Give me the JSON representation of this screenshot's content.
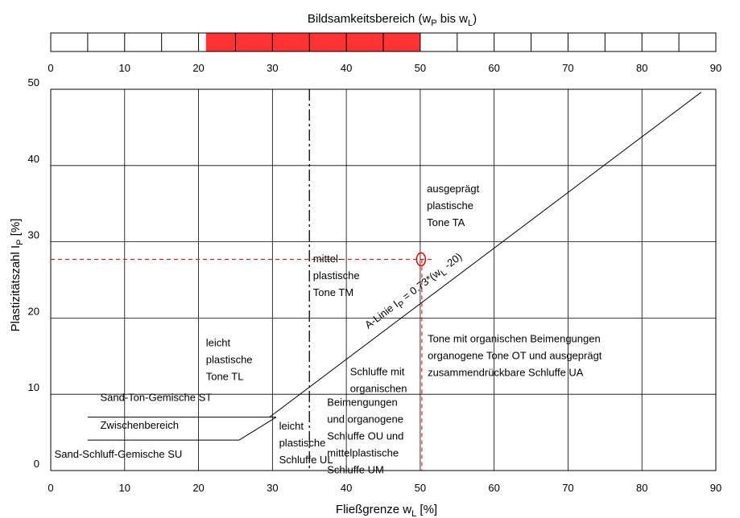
{
  "chart_data": {
    "type": "line",
    "title": "",
    "top_bar": {
      "title_parts": [
        "Bildsamkeitsbereich (w",
        "P",
        " bis w",
        "L",
        ")"
      ],
      "x_range": [
        0,
        90
      ],
      "highlight": [
        21,
        50
      ],
      "highlight_color": "#ff3333",
      "divisions": [
        5,
        10,
        15,
        20,
        25,
        30,
        35,
        40,
        45,
        50,
        55,
        60,
        65,
        70,
        75,
        80,
        85
      ],
      "ticks": [
        "0",
        "10",
        "20",
        "30",
        "40",
        "50",
        "60",
        "70",
        "80",
        "90"
      ]
    },
    "xlabel_parts": [
      "Fließgrenze w",
      "L",
      "  [%]"
    ],
    "ylabel_parts": [
      "Plastizitätszahl I",
      "P",
      " [%]"
    ],
    "xlim": [
      0,
      90
    ],
    "ylim": [
      0,
      50
    ],
    "x_ticks": [
      "0",
      "10",
      "20",
      "30",
      "40",
      "50",
      "60",
      "70",
      "80",
      "90"
    ],
    "y_ticks": [
      "0",
      "10",
      "20",
      "30",
      "40",
      "50"
    ],
    "grid": true,
    "a_line": {
      "label_parts": [
        "A-Linie I",
        "P",
        " = 0.73*(w",
        "L",
        " -20)"
      ],
      "x": [
        29.6,
        88
      ],
      "y": [
        7,
        49.6
      ]
    },
    "boundaries": [
      {
        "name": "ST-SU upper",
        "x": [
          5,
          30.5
        ],
        "y": [
          7,
          7
        ]
      },
      {
        "name": "SU lower",
        "x": [
          5,
          25.5
        ],
        "y": [
          4,
          4
        ]
      },
      {
        "name": "UL boundary",
        "x": [
          25.5,
          30.5
        ],
        "y": [
          4,
          7
        ]
      }
    ],
    "dashed_line_x": 35,
    "marker": {
      "x": 50,
      "y": 27.7,
      "color": "#dd0000"
    },
    "region_labels": [
      {
        "lines": [
          "ausgeprägt",
          "plastische",
          "Tone TA"
        ],
        "x": 50.9,
        "y": 36.5
      },
      {
        "lines": [
          "mittel-",
          "plastische",
          "Tone TM"
        ],
        "x": 35.5,
        "y": 27.3
      },
      {
        "lines": [
          "leicht",
          "plastische",
          "Tone TL"
        ],
        "x": 21,
        "y": 16.3
      },
      {
        "lines": [
          "Tone mit organischen Beimengungen",
          "organogene Tone OT und ausgeprägt",
          "zusammendrückbare Schluffe UA"
        ],
        "x": 51,
        "y": 16.8
      },
      {
        "lines": [
          "Schluffe mit",
          "organischen"
        ],
        "x": 40.5,
        "y": 12.5
      },
      {
        "lines": [
          "Beimengungen",
          "und organogene",
          "Schluffe OU und",
          "mittelplastische",
          "Schluffe UM"
        ],
        "x": 37.4,
        "y": 8.5
      },
      {
        "lines": [
          "leicht",
          "plastische",
          "Schluffe UL"
        ],
        "x": 30.9,
        "y": 5.4
      },
      {
        "lines": [
          "Sand-Ton-Gemische ST"
        ],
        "x": 6.7,
        "y": 9.1
      },
      {
        "lines": [
          "Zwischenbereich"
        ],
        "x": 6.7,
        "y": 5.5
      },
      {
        "lines": [
          "Sand-Schluff-Gemische SU"
        ],
        "x": 0.5,
        "y": 1.7
      }
    ]
  }
}
